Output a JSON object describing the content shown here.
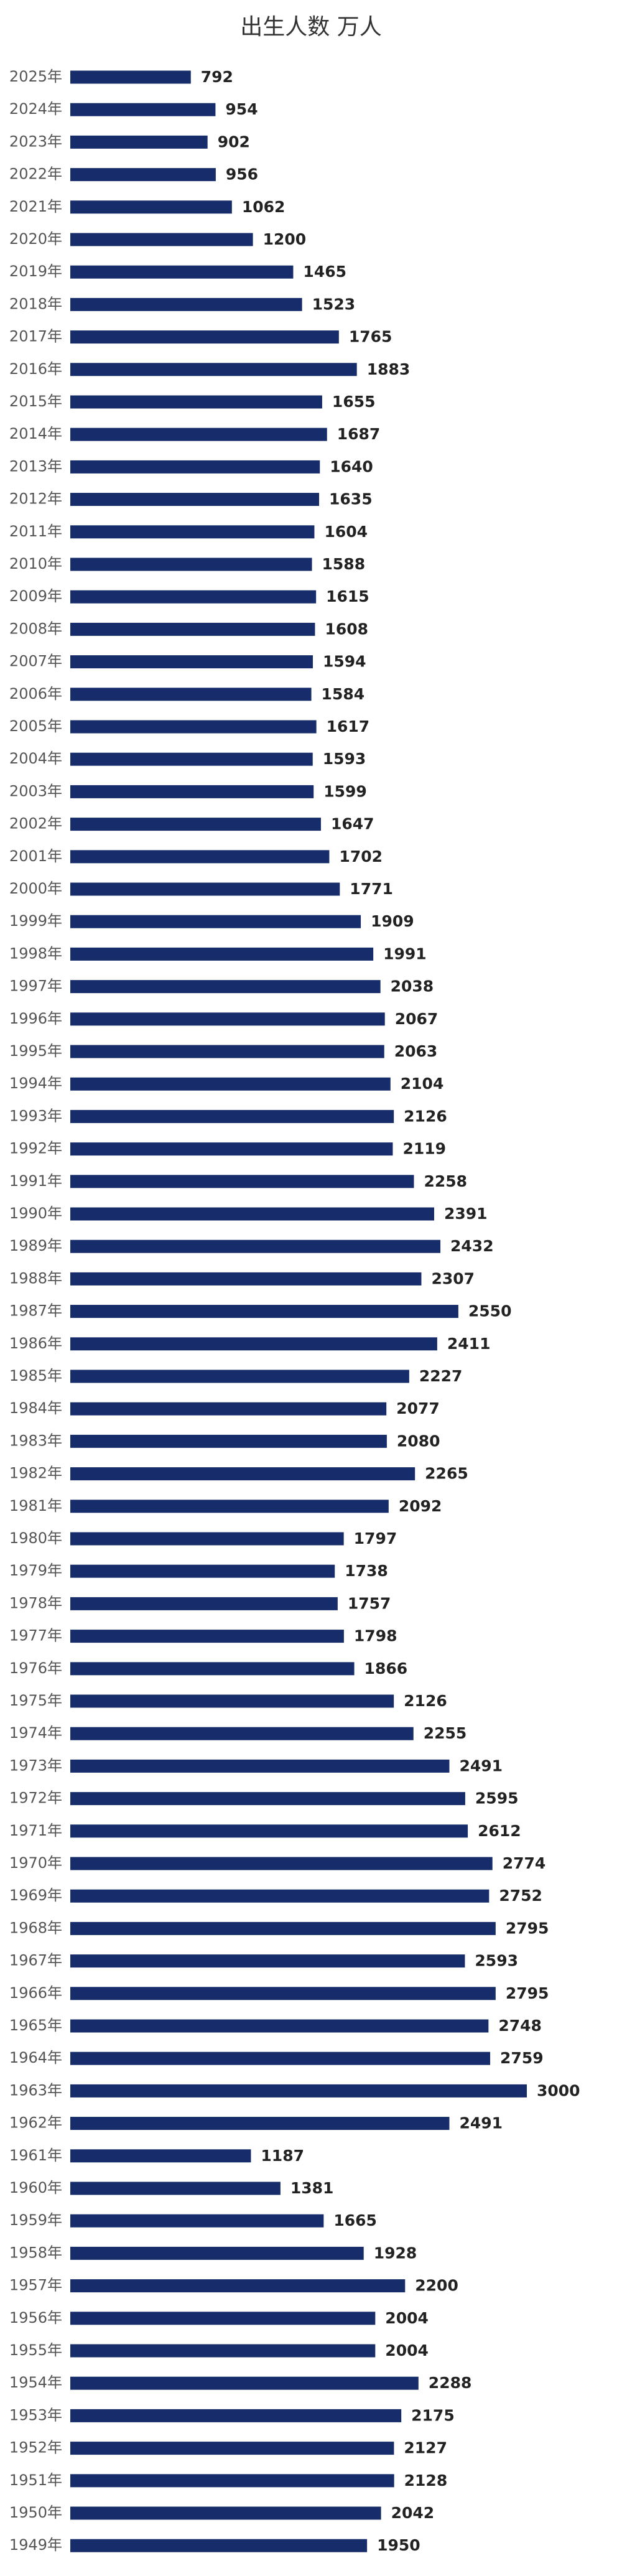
{
  "chart_data": {
    "type": "bar",
    "orientation": "horizontal",
    "title": "出生人数 万人",
    "categories": [
      "2025年",
      "2024年",
      "2023年",
      "2022年",
      "2021年",
      "2020年",
      "2019年",
      "2018年",
      "2017年",
      "2016年",
      "2015年",
      "2014年",
      "2013年",
      "2012年",
      "2011年",
      "2010年",
      "2009年",
      "2008年",
      "2007年",
      "2006年",
      "2005年",
      "2004年",
      "2003年",
      "2002年",
      "2001年",
      "2000年",
      "1999年",
      "1998年",
      "1997年",
      "1996年",
      "1995年",
      "1994年",
      "1993年",
      "1992年",
      "1991年",
      "1990年",
      "1989年",
      "1988年",
      "1987年",
      "1986年",
      "1985年",
      "1984年",
      "1983年",
      "1982年",
      "1981年",
      "1980年",
      "1979年",
      "1978年",
      "1977年",
      "1976年",
      "1975年",
      "1974年",
      "1973年",
      "1972年",
      "1971年",
      "1970年",
      "1969年",
      "1968年",
      "1967年",
      "1966年",
      "1965年",
      "1964年",
      "1963年",
      "1962年",
      "1961年",
      "1960年",
      "1959年",
      "1958年",
      "1957年",
      "1956年",
      "1955年",
      "1954年",
      "1953年",
      "1952年",
      "1951年",
      "1950年",
      "1949年"
    ],
    "values": [
      792,
      954,
      902,
      956,
      1062,
      1200,
      1465,
      1523,
      1765,
      1883,
      1655,
      1687,
      1640,
      1635,
      1604,
      1588,
      1615,
      1608,
      1594,
      1584,
      1617,
      1593,
      1599,
      1647,
      1702,
      1771,
      1909,
      1991,
      2038,
      2067,
      2063,
      2104,
      2126,
      2119,
      2258,
      2391,
      2432,
      2307,
      2550,
      2411,
      2227,
      2077,
      2080,
      2265,
      2092,
      1797,
      1738,
      1757,
      1798,
      1866,
      2126,
      2255,
      2491,
      2595,
      2612,
      2774,
      2752,
      2795,
      2593,
      2795,
      2748,
      2759,
      3000,
      2491,
      1187,
      1381,
      1665,
      1928,
      2200,
      2004,
      2004,
      2288,
      2175,
      2127,
      2128,
      2042,
      1950
    ],
    "color": "#172d6b",
    "xlim": [
      0,
      3000
    ]
  }
}
